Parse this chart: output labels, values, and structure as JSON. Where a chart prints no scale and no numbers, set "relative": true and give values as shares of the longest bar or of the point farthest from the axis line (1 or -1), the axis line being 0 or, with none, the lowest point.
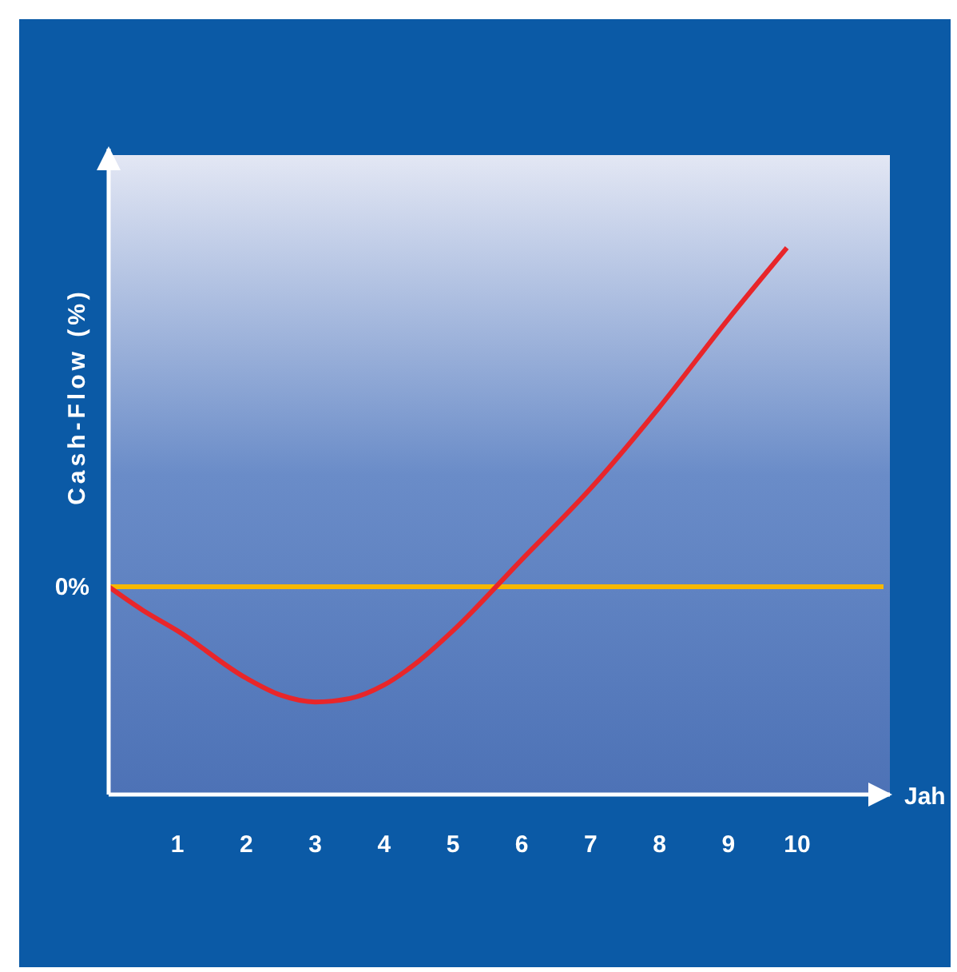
{
  "chart_data": {
    "type": "line",
    "relative": true,
    "ylabel": "Cash-Flow (%)",
    "xlabel": "Jah",
    "x": [
      0,
      0.5,
      1,
      2,
      2.5,
      3,
      3.5,
      4,
      4.5,
      5,
      6,
      7,
      8,
      9,
      9.85
    ],
    "xlim": [
      0,
      11.3
    ],
    "xticks": [
      1,
      2,
      3,
      4,
      5,
      6,
      7,
      8,
      9,
      10
    ],
    "series": [
      {
        "color": "#e8262a",
        "values": [
          0,
          -0.07,
          -0.13,
          -0.27,
          -0.32,
          -0.34,
          -0.33,
          -0.29,
          -0.22,
          -0.13,
          0.08,
          0.29,
          0.53,
          0.79,
          1
        ]
      }
    ],
    "ref_lines": [
      {
        "axis": "y",
        "value": 0,
        "label": "0%",
        "color": "#f5b800"
      }
    ],
    "grid": false,
    "marker": "none",
    "line_style": "solid"
  }
}
